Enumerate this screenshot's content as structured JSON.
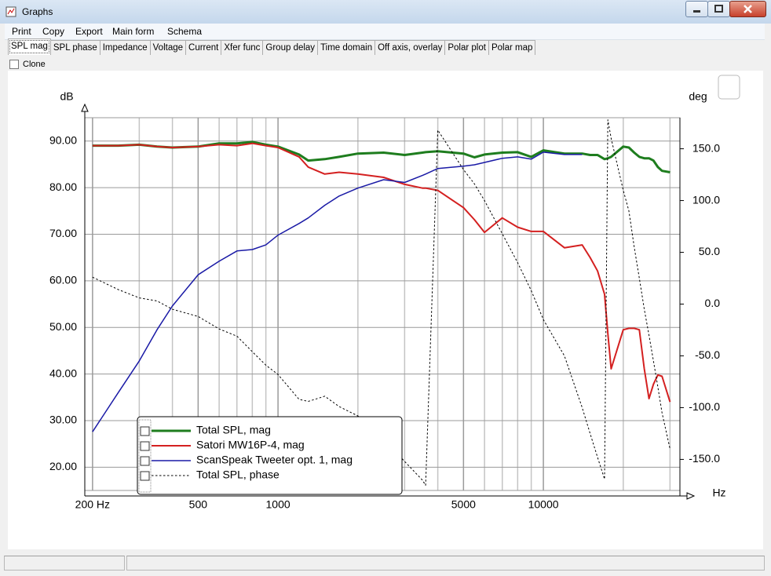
{
  "window": {
    "title": "Graphs"
  },
  "menu": [
    "Print",
    "Copy",
    "Export",
    "Main form",
    "Schema"
  ],
  "tabs": [
    "SPL mag",
    "SPL phase",
    "Impedance",
    "Voltage",
    "Current",
    "Xfer func",
    "Group delay",
    "Time domain",
    "Off axis, overlay",
    "Polar plot",
    "Polar map"
  ],
  "clone_label": "Clone",
  "chart_data": {
    "type": "line",
    "x_scale": "log",
    "x_label": "Hz",
    "y_label": "dB",
    "y2_label": "deg",
    "grid": true,
    "xlim": [
      187,
      32700
    ],
    "xticks": [
      {
        "value": 200,
        "label": "200 Hz"
      },
      500,
      1000,
      5000,
      10000
    ],
    "x_minor_ticks": [
      300,
      400,
      600,
      700,
      800,
      900,
      2000,
      3000,
      4000,
      6000,
      7000,
      8000,
      9000,
      20000,
      30000
    ],
    "ylim": [
      15,
      95
    ],
    "yticks": [
      {
        "value": 20,
        "label": "20.00"
      },
      {
        "value": 30,
        "label": "30.00"
      },
      {
        "value": 40,
        "label": "40.00"
      },
      {
        "value": 50,
        "label": "50.00"
      },
      {
        "value": 60,
        "label": "60.00"
      },
      {
        "value": 70,
        "label": "70.00"
      },
      {
        "value": 80,
        "label": "80.00"
      },
      {
        "value": 90,
        "label": "90.00"
      }
    ],
    "y2lim": [
      -180,
      180
    ],
    "y2ticks": [
      {
        "value": -150,
        "label": "-150.0"
      },
      {
        "value": -100,
        "label": "-100.0"
      },
      {
        "value": -50,
        "label": "-50.0"
      },
      {
        "value": 0,
        "label": "0.0"
      },
      {
        "value": 50,
        "label": "50.0"
      },
      {
        "value": 100,
        "label": "100.0"
      },
      {
        "value": 150,
        "label": "150.0"
      }
    ],
    "x": [
      200,
      250,
      300,
      350,
      400,
      500,
      600,
      700,
      800,
      900,
      1000,
      1200,
      1300,
      1500,
      1700,
      2000,
      2500,
      3000,
      3500,
      3600,
      4000,
      5000,
      5500,
      6000,
      7000,
      8000,
      9000,
      10000,
      12000,
      14000,
      15000,
      16000,
      17000,
      17500,
      18000,
      20000,
      21000,
      22000,
      23000,
      24000,
      25000,
      26000,
      27000,
      28000,
      30000
    ],
    "series": [
      {
        "name": "Total SPL, mag",
        "color": "#1e7d1e",
        "width": 3,
        "style": "solid",
        "values": [
          89.0,
          89.0,
          89.2,
          88.8,
          88.6,
          88.8,
          89.5,
          89.5,
          89.8,
          89.2,
          88.8,
          87.1,
          85.8,
          86.1,
          86.6,
          87.3,
          87.5,
          87.0,
          87.5,
          87.6,
          87.8,
          87.3,
          86.5,
          87.1,
          87.5,
          87.6,
          86.6,
          88.0,
          87.3,
          87.3,
          87.0,
          87.0,
          86.1,
          86.3,
          86.6,
          88.8,
          88.6,
          87.5,
          86.6,
          86.3,
          86.3,
          85.8,
          84.4,
          83.6,
          83.3
        ]
      },
      {
        "name": "Satori MW16P-4, mag",
        "color": "#d42020",
        "width": 2,
        "style": "solid",
        "values": [
          89.0,
          89.0,
          89.2,
          88.8,
          88.6,
          88.8,
          89.2,
          89.0,
          89.5,
          89.0,
          88.6,
          86.6,
          84.4,
          82.9,
          83.3,
          82.9,
          82.2,
          80.7,
          79.9,
          79.9,
          79.4,
          75.7,
          73.1,
          70.4,
          73.5,
          71.5,
          70.6,
          70.6,
          67.1,
          67.7,
          65.0,
          62.1,
          57.1,
          48.7,
          41.1,
          49.5,
          49.8,
          49.8,
          49.5,
          41.1,
          34.7,
          37.8,
          39.8,
          39.5,
          34.0
        ]
      },
      {
        "name": "ScanSpeak Tweeter opt. 1, mag",
        "color": "#1a1aa6",
        "width": 1.5,
        "style": "solid",
        "values": [
          27.6,
          36.0,
          42.8,
          49.5,
          54.6,
          61.3,
          64.2,
          66.4,
          66.7,
          67.7,
          69.8,
          72.3,
          73.5,
          76.2,
          78.2,
          79.9,
          81.7,
          81.1,
          82.6,
          82.9,
          84.1,
          84.6,
          84.9,
          85.4,
          86.3,
          86.6,
          86.1,
          87.6,
          87.1,
          87.1,
          null,
          null,
          null,
          null,
          null,
          null,
          null,
          null,
          null,
          null,
          null,
          null,
          null,
          null,
          null
        ]
      },
      {
        "name": "Total SPL, phase",
        "color": "#000000",
        "width": 1,
        "style": "dashed",
        "axis": "y2",
        "values": [
          26,
          14,
          6,
          3,
          -5,
          -12,
          -24,
          -31,
          -46,
          -59,
          -68,
          -92,
          -94,
          -89,
          -99,
          -108,
          -130,
          -152,
          -170,
          -175,
          168,
          130,
          116,
          100,
          68,
          40,
          13,
          -15,
          -50,
          -100,
          -125,
          -148,
          -169,
          178,
          160,
          110,
          90,
          55,
          25,
          -5,
          -30,
          -55,
          -80,
          -105,
          -140
        ]
      }
    ]
  }
}
